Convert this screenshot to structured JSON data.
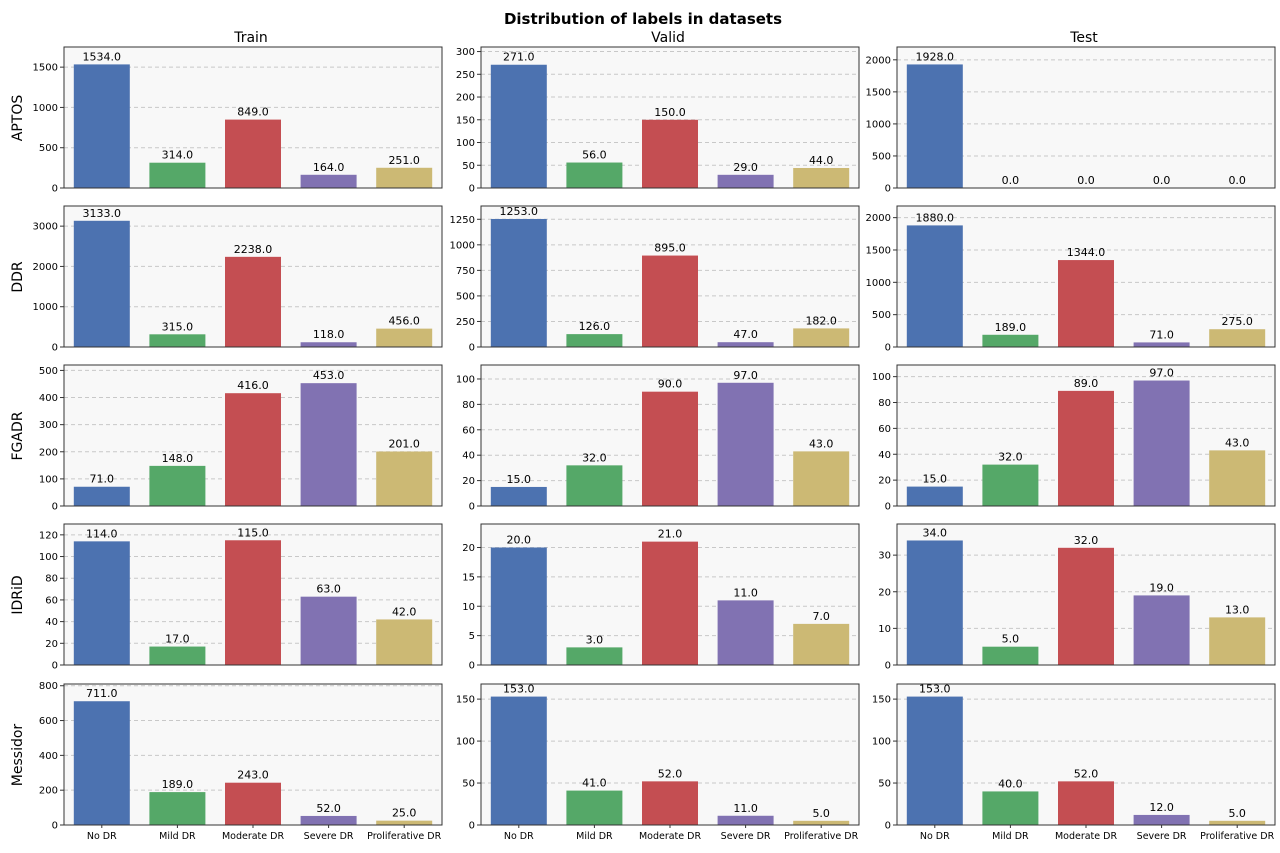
{
  "figure": {
    "title": "Distribution of labels in datasets"
  },
  "chart_data": {
    "type": "bar",
    "title": "Distribution of labels in datasets",
    "grid": true,
    "grid_axis": "y",
    "columns": [
      "Train",
      "Valid",
      "Test"
    ],
    "rows": [
      "APTOS",
      "DDR",
      "FGADR",
      "IDRiD",
      "Messidor"
    ],
    "categories": [
      "No DR",
      "Mild DR",
      "Moderate DR",
      "Severe DR",
      "Proliferative DR"
    ],
    "colors": [
      "#4c72b0",
      "#55a868",
      "#c44e52",
      "#8172b2",
      "#ccb974"
    ],
    "panels": [
      {
        "dataset": "APTOS",
        "split": "Train",
        "values": [
          1534,
          314,
          849,
          164,
          251
        ],
        "labels": [
          "1534.0",
          "314.0",
          "849.0",
          "164.0",
          "251.0"
        ],
        "ylim": [
          0,
          1750
        ],
        "yticks": [
          0,
          500,
          1000,
          1500
        ]
      },
      {
        "dataset": "APTOS",
        "split": "Valid",
        "values": [
          271,
          56,
          150,
          29,
          44
        ],
        "labels": [
          "271.0",
          "56.0",
          "150.0",
          "29.0",
          "44.0"
        ],
        "ylim": [
          0,
          310
        ],
        "yticks": [
          0,
          50,
          100,
          150,
          200,
          250,
          300
        ]
      },
      {
        "dataset": "APTOS",
        "split": "Test",
        "values": [
          1928,
          0,
          0,
          0,
          0
        ],
        "labels": [
          "1928.0",
          "0.0",
          "0.0",
          "0.0",
          "0.0"
        ],
        "ylim": [
          0,
          2200
        ],
        "yticks": [
          0,
          500,
          1000,
          1500,
          2000
        ]
      },
      {
        "dataset": "DDR",
        "split": "Train",
        "values": [
          3133,
          315,
          2238,
          118,
          456
        ],
        "labels": [
          "3133.0",
          "315.0",
          "2238.0",
          "118.0",
          "456.0"
        ],
        "ylim": [
          0,
          3500
        ],
        "yticks": [
          0,
          1000,
          2000,
          3000
        ]
      },
      {
        "dataset": "DDR",
        "split": "Valid",
        "values": [
          1253,
          126,
          895,
          47,
          182
        ],
        "labels": [
          "1253.0",
          "126.0",
          "895.0",
          "47.0",
          "182.0"
        ],
        "ylim": [
          0,
          1380
        ],
        "yticks": [
          0,
          250,
          500,
          750,
          1000,
          1250
        ]
      },
      {
        "dataset": "DDR",
        "split": "Test",
        "values": [
          1880,
          189,
          1344,
          71,
          275
        ],
        "labels": [
          "1880.0",
          "189.0",
          "1344.0",
          "71.0",
          "275.0"
        ],
        "ylim": [
          0,
          2180
        ],
        "yticks": [
          0,
          500,
          1000,
          1500,
          2000
        ]
      },
      {
        "dataset": "FGADR",
        "split": "Train",
        "values": [
          71,
          148,
          416,
          453,
          201
        ],
        "labels": [
          "71.0",
          "148.0",
          "416.0",
          "453.0",
          "201.0"
        ],
        "ylim": [
          0,
          520
        ],
        "yticks": [
          0,
          100,
          200,
          300,
          400,
          500
        ]
      },
      {
        "dataset": "FGADR",
        "split": "Valid",
        "values": [
          15,
          32,
          90,
          97,
          43
        ],
        "labels": [
          "15.0",
          "32.0",
          "90.0",
          "97.0",
          "43.0"
        ],
        "ylim": [
          0,
          111
        ],
        "yticks": [
          0,
          20,
          40,
          60,
          80,
          100
        ]
      },
      {
        "dataset": "FGADR",
        "split": "Test",
        "values": [
          15,
          32,
          89,
          97,
          43
        ],
        "labels": [
          "15.0",
          "32.0",
          "89.0",
          "97.0",
          "43.0"
        ],
        "ylim": [
          0,
          109
        ],
        "yticks": [
          0,
          20,
          40,
          60,
          80,
          100
        ]
      },
      {
        "dataset": "IDRiD",
        "split": "Train",
        "values": [
          114,
          17,
          115,
          63,
          42
        ],
        "labels": [
          "114.0",
          "17.0",
          "115.0",
          "63.0",
          "42.0"
        ],
        "ylim": [
          0,
          130
        ],
        "yticks": [
          0,
          20,
          40,
          60,
          80,
          100,
          120
        ]
      },
      {
        "dataset": "IDRiD",
        "split": "Valid",
        "values": [
          20,
          3,
          21,
          11,
          7
        ],
        "labels": [
          "20.0",
          "3.0",
          "21.0",
          "11.0",
          "7.0"
        ],
        "ylim": [
          0,
          24
        ],
        "yticks": [
          0,
          5,
          10,
          15,
          20
        ]
      },
      {
        "dataset": "IDRiD",
        "split": "Test",
        "values": [
          34,
          5,
          32,
          19,
          13
        ],
        "labels": [
          "34.0",
          "5.0",
          "32.0",
          "19.0",
          "13.0"
        ],
        "ylim": [
          0,
          38.5
        ],
        "yticks": [
          0,
          10,
          20,
          30
        ]
      },
      {
        "dataset": "Messidor",
        "split": "Train",
        "values": [
          711,
          189,
          243,
          52,
          25
        ],
        "labels": [
          "711.0",
          "189.0",
          "243.0",
          "52.0",
          "25.0"
        ],
        "ylim": [
          0,
          810
        ],
        "yticks": [
          0,
          200,
          400,
          600,
          800
        ]
      },
      {
        "dataset": "Messidor",
        "split": "Valid",
        "values": [
          153,
          41,
          52,
          11,
          5
        ],
        "labels": [
          "153.0",
          "41.0",
          "52.0",
          "11.0",
          "5.0"
        ],
        "ylim": [
          0,
          168
        ],
        "yticks": [
          0,
          50,
          100,
          150
        ]
      },
      {
        "dataset": "Messidor",
        "split": "Test",
        "values": [
          153,
          40,
          52,
          12,
          5
        ],
        "labels": [
          "153.0",
          "40.0",
          "52.0",
          "12.0",
          "5.0"
        ],
        "ylim": [
          0,
          168
        ],
        "yticks": [
          0,
          50,
          100,
          150
        ]
      }
    ]
  }
}
